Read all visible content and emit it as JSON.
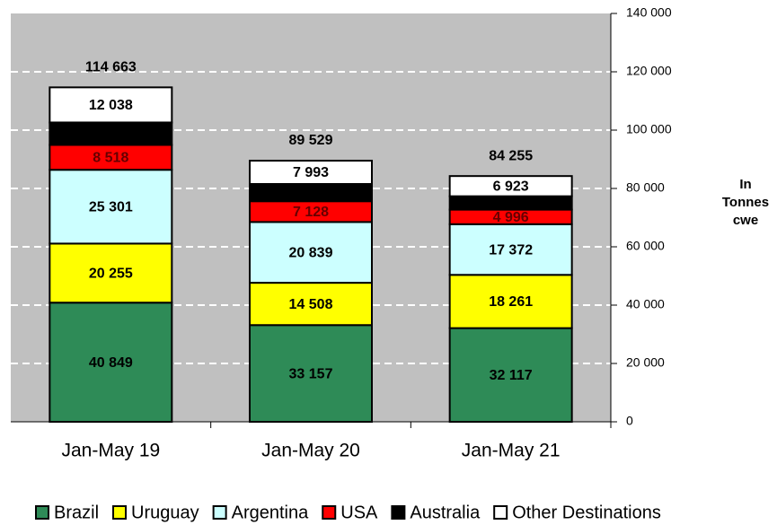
{
  "chart_data": {
    "type": "stacked_bar",
    "y_label": "In Tonnes cwe",
    "categories": [
      "Jan-May 19",
      "Jan-May 20",
      "Jan-May 21"
    ],
    "series": [
      {
        "name": "Brazil",
        "color": "#2e8b57",
        "values": [
          40849,
          33157,
          32117
        ],
        "value_labels": [
          "40 849",
          "33 157",
          "32 117"
        ]
      },
      {
        "name": "Uruguay",
        "color": "#ffff00",
        "values": [
          20255,
          14508,
          18261
        ],
        "value_labels": [
          "20 255",
          "14 508",
          "18 261"
        ]
      },
      {
        "name": "Argentina",
        "color": "#ccffff",
        "values": [
          25301,
          20839,
          17372
        ],
        "value_labels": [
          "25 301",
          "20 839",
          "17 372"
        ]
      },
      {
        "name": "USA",
        "color": "#ff0000",
        "values": [
          8518,
          7128,
          4996
        ],
        "value_labels": [
          "8 518",
          "7 128",
          "4 996"
        ]
      },
      {
        "name": "Australia",
        "color": "#000000",
        "values": [
          7702,
          5904,
          4586
        ]
      },
      {
        "name": "Other Destinations",
        "color": "#ffffff",
        "values": [
          12038,
          7993,
          6923
        ],
        "value_labels": [
          "12 038",
          "7 993",
          "6 923"
        ]
      }
    ],
    "totals": [
      114663,
      89529,
      84255
    ],
    "total_labels": [
      "114 663",
      "89 529",
      "84 255"
    ],
    "ylim": [
      0,
      140000
    ],
    "yticks": [
      0,
      {
        "value": 20000,
        "label": "20 000"
      },
      {
        "value": 40000,
        "label": "40 000"
      },
      {
        "value": 60000,
        "label": "60 000"
      },
      {
        "value": 80000,
        "label": "80 000"
      },
      {
        "value": 100000,
        "label": "100 000"
      },
      {
        "value": 120000,
        "label": "120 000"
      },
      {
        "value": 140000,
        "label": "140 000"
      }
    ],
    "grid": true,
    "background": "#c0c0c0",
    "legend": "bottom"
  }
}
